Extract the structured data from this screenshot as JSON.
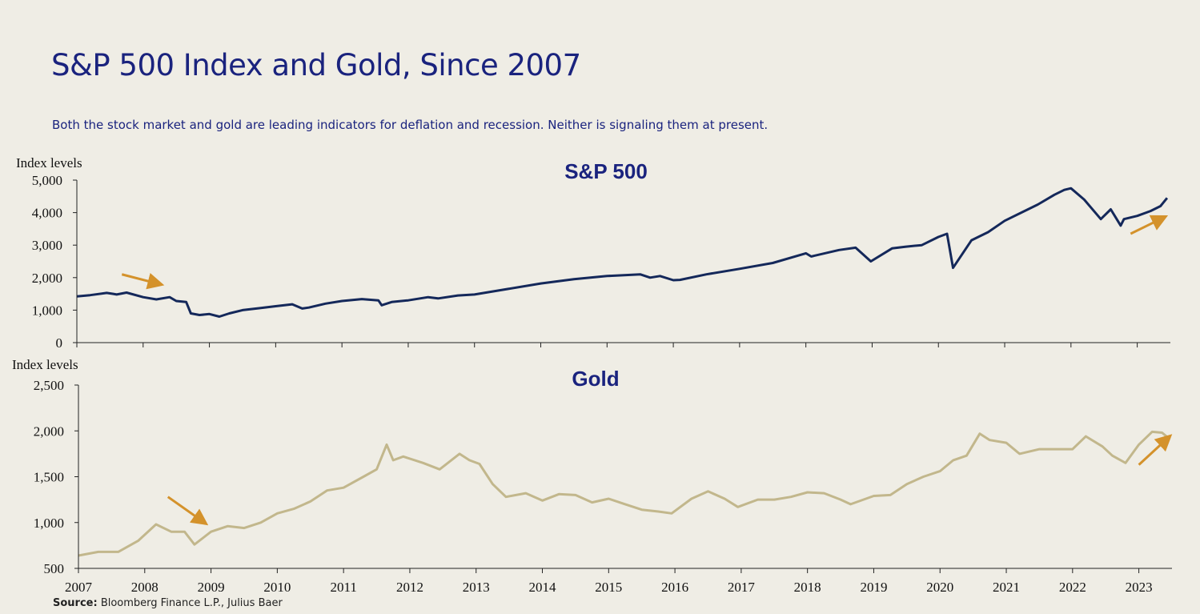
{
  "title": "S&P 500 Index and Gold, Since 2007",
  "subtitle": "Both the stock market and gold are leading indicators for deflation and recession. Neither is signaling them at present.",
  "source": {
    "label": "Source:",
    "text": " Bloomberg Finance L.P., Julius Baer"
  },
  "colors": {
    "sp500_line": "#14285a",
    "gold_line": "#c2b78c",
    "arrow": "#d4922b",
    "title": "#1a237e"
  },
  "chart_data": [
    {
      "type": "line",
      "title": "S&P 500",
      "ylabel": "Index levels",
      "ylim": [
        0,
        5000
      ],
      "yticks": [
        "0",
        "1,000",
        "2,000",
        "3,000",
        "4,000",
        "5,000"
      ],
      "xlim": [
        2007,
        2023.5
      ],
      "xticks": [
        2007,
        2008,
        2009,
        2010,
        2011,
        2012,
        2013,
        2014,
        2015,
        2016,
        2017,
        2018,
        2019,
        2020,
        2021,
        2022,
        2023
      ],
      "grid": false,
      "series": [
        {
          "x": [
            2007.0,
            2007.2,
            2007.45,
            2007.55,
            2007.6,
            2007.75,
            2008.0,
            2008.2,
            2008.4,
            2008.5,
            2008.65,
            2008.72,
            2008.85,
            2009.0,
            2009.15,
            2009.3,
            2009.5,
            2009.75,
            2010.0,
            2010.25,
            2010.4,
            2010.5,
            2010.75,
            2011.0,
            2011.3,
            2011.55,
            2011.6,
            2011.75,
            2012.0,
            2012.3,
            2012.45,
            2012.75,
            2013.0,
            2013.5,
            2014.0,
            2014.5,
            2015.0,
            2015.5,
            2015.65,
            2015.8,
            2016.0,
            2016.1,
            2016.5,
            2017.0,
            2017.5,
            2018.0,
            2018.08,
            2018.5,
            2018.75,
            2018.98,
            2019.3,
            2019.5,
            2019.75,
            2020.0,
            2020.13,
            2020.22,
            2020.5,
            2020.75,
            2021.0,
            2021.5,
            2021.75,
            2021.9,
            2022.0,
            2022.2,
            2022.45,
            2022.6,
            2022.75,
            2022.8,
            2023.0,
            2023.2,
            2023.35,
            2023.45
          ],
          "y": [
            1420,
            1460,
            1530,
            1500,
            1480,
            1540,
            1400,
            1330,
            1400,
            1280,
            1250,
            900,
            850,
            880,
            800,
            900,
            1000,
            1060,
            1120,
            1180,
            1050,
            1080,
            1200,
            1280,
            1340,
            1300,
            1150,
            1250,
            1300,
            1400,
            1360,
            1450,
            1480,
            1650,
            1820,
            1950,
            2050,
            2100,
            2000,
            2050,
            1920,
            1930,
            2100,
            2270,
            2450,
            2750,
            2650,
            2850,
            2920,
            2500,
            2900,
            2950,
            3000,
            3250,
            3350,
            2300,
            3150,
            3400,
            3750,
            4250,
            4550,
            4700,
            4750,
            4400,
            3800,
            4100,
            3600,
            3800,
            3900,
            4050,
            4200,
            4450
          ]
        }
      ],
      "annotations": [
        {
          "type": "arrow",
          "direction": "down-right",
          "x0": 2007.68,
          "y0": 2100,
          "x1": 2008.25,
          "y1": 1800
        },
        {
          "type": "arrow",
          "direction": "up-right",
          "x0": 2022.9,
          "y0": 3350,
          "x1": 2023.4,
          "y1": 3850
        }
      ]
    },
    {
      "type": "line",
      "title": "Gold",
      "ylabel": "Index levels",
      "ylim": [
        500,
        2500
      ],
      "yticks": [
        "500",
        "1,000",
        "1,500",
        "2,000",
        "2,500"
      ],
      "xlim": [
        2007,
        2023.5
      ],
      "xticks": [
        2007,
        2008,
        2009,
        2010,
        2011,
        2012,
        2013,
        2014,
        2015,
        2016,
        2017,
        2018,
        2019,
        2020,
        2021,
        2022,
        2023
      ],
      "grid": false,
      "series": [
        {
          "x": [
            2007.0,
            2007.3,
            2007.6,
            2007.9,
            2008.17,
            2008.4,
            2008.6,
            2008.75,
            2009.0,
            2009.25,
            2009.5,
            2009.75,
            2010.0,
            2010.25,
            2010.5,
            2010.75,
            2011.0,
            2011.3,
            2011.5,
            2011.65,
            2011.75,
            2011.9,
            2012.2,
            2012.45,
            2012.75,
            2012.9,
            2013.05,
            2013.25,
            2013.45,
            2013.75,
            2014.0,
            2014.25,
            2014.5,
            2014.75,
            2015.0,
            2015.25,
            2015.5,
            2015.75,
            2015.95,
            2016.25,
            2016.5,
            2016.75,
            2016.95,
            2017.25,
            2017.5,
            2017.75,
            2018.0,
            2018.25,
            2018.5,
            2018.65,
            2019.0,
            2019.25,
            2019.5,
            2019.75,
            2020.0,
            2020.2,
            2020.4,
            2020.6,
            2020.75,
            2021.0,
            2021.2,
            2021.5,
            2021.75,
            2022.0,
            2022.2,
            2022.45,
            2022.6,
            2022.8,
            2023.0,
            2023.2,
            2023.35,
            2023.45
          ],
          "y": [
            640,
            680,
            680,
            800,
            980,
            900,
            900,
            760,
            900,
            960,
            940,
            1000,
            1100,
            1150,
            1230,
            1350,
            1380,
            1500,
            1580,
            1850,
            1680,
            1720,
            1650,
            1580,
            1750,
            1680,
            1640,
            1420,
            1280,
            1320,
            1240,
            1310,
            1300,
            1220,
            1260,
            1200,
            1140,
            1120,
            1100,
            1260,
            1340,
            1260,
            1170,
            1250,
            1250,
            1280,
            1330,
            1320,
            1250,
            1200,
            1290,
            1300,
            1420,
            1500,
            1560,
            1680,
            1730,
            1970,
            1900,
            1870,
            1750,
            1800,
            1800,
            1800,
            1940,
            1830,
            1730,
            1650,
            1850,
            1990,
            1980,
            1920
          ]
        }
      ],
      "annotations": [
        {
          "type": "arrow",
          "direction": "down-right",
          "x0": 2008.35,
          "y0": 1280,
          "x1": 2008.9,
          "y1": 1000
        },
        {
          "type": "arrow",
          "direction": "up-right",
          "x0": 2023.0,
          "y0": 1630,
          "x1": 2023.45,
          "y1": 1930
        }
      ]
    }
  ]
}
